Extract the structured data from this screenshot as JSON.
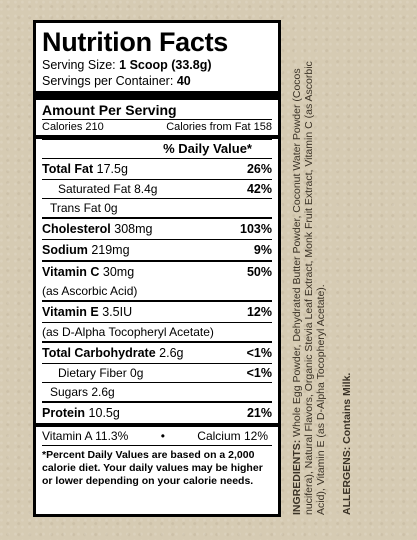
{
  "title": "Nutrition Facts",
  "serving_size_label": "Serving Size:",
  "serving_size_value": "1 Scoop (33.8g)",
  "servings_label": "Servings per Container:",
  "servings_value": "40",
  "amount_per_serving": "Amount Per Serving",
  "calories": "Calories 210",
  "calories_from_fat": "Calories from Fat 158",
  "dv_header": "% Daily Value*",
  "rows": [
    {
      "name": "Total Fat",
      "amount": "17.5g",
      "pct": "26%"
    },
    {
      "name": "Saturated Fat",
      "amount": "8.4g",
      "pct": "42%"
    },
    {
      "name": "Trans Fat",
      "amount": "0g",
      "pct": ""
    },
    {
      "name": "Cholesterol",
      "amount": "308mg",
      "pct": "103%"
    },
    {
      "name": "Sodium",
      "amount": "219mg",
      "pct": "9%"
    },
    {
      "name": "Vitamin C",
      "amount": "30mg",
      "pct": "50%"
    },
    {
      "name": "(as Ascorbic Acid)",
      "amount": "",
      "pct": ""
    },
    {
      "name": "Vitamin E",
      "amount": "3.5IU",
      "pct": "12%"
    },
    {
      "name": "(as D-Alpha Tocopheryl Acetate)",
      "amount": "",
      "pct": ""
    },
    {
      "name": "Total Carbohydrate",
      "amount": "2.6g",
      "pct": "<1%"
    },
    {
      "name": "Dietary Fiber",
      "amount": "0g",
      "pct": "<1%"
    },
    {
      "name": "Sugars",
      "amount": "2.6g",
      "pct": ""
    },
    {
      "name": "Protein",
      "amount": "10.5g",
      "pct": "21%"
    }
  ],
  "vitamin_a": "Vitamin A 11.3%",
  "bullet": "•",
  "calcium": "Calcium 12%",
  "footnote": "*Percent Daily Values are based on a 2,000 calorie diet. Your daily values may be higher or lower depending on your calorie needs.",
  "ingredients_label": "INGREDIENTS:",
  "ingredients_text": "Whole Egg Powder, Dehydrated Butter Powder, Coconut Water Powder (Cocos nucifera), Natural Flavors, Organic Stevia Leaf Extract, Monk Fruit Extract, Vitamin C (as Ascorbic Acid), Vitamin E (as D-Alpha Tocopheryl Acetate).",
  "allergens_label": "ALLERGENS:",
  "allergens_text": "Contains Milk."
}
